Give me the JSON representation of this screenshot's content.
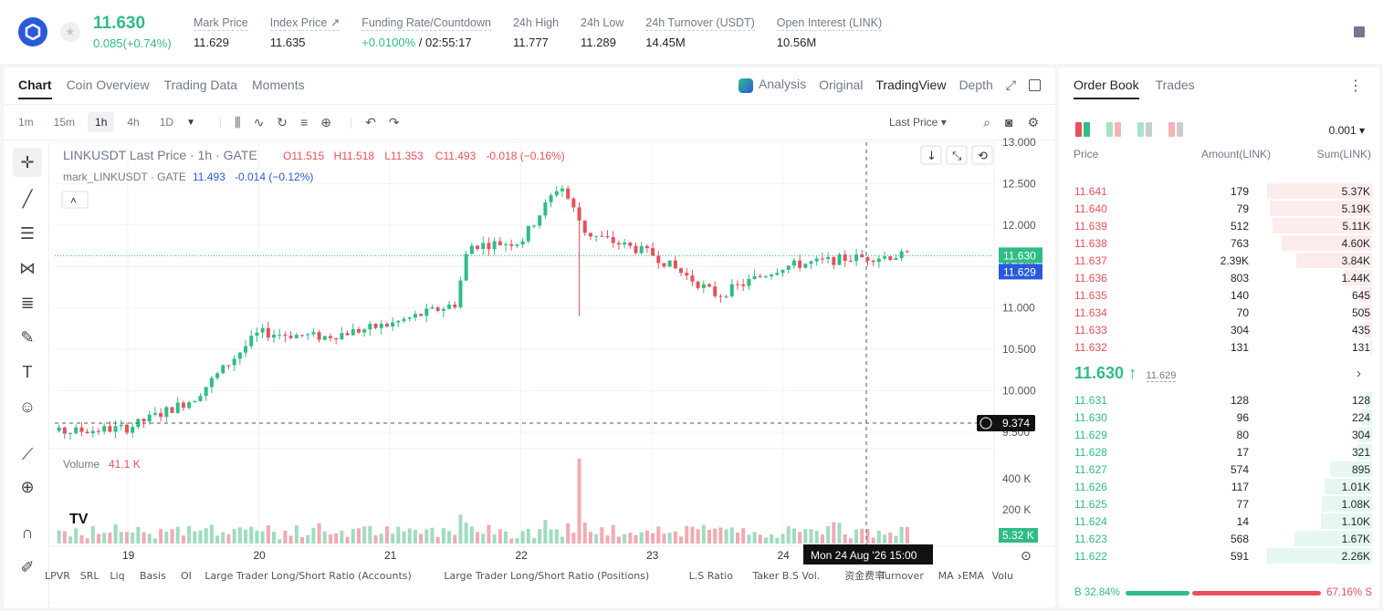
{
  "ticker": {
    "last_price": "11.630",
    "change": "0.085(+0.74%)",
    "stats": [
      {
        "label": "Mark Price",
        "value": "11.629"
      },
      {
        "label": "Index Price ↗",
        "value": "11.635"
      },
      {
        "label": "Funding Rate/Countdown",
        "value_green": "+0.0100%",
        "value": " / 02:55:17"
      },
      {
        "label": "24h High",
        "value": "11.777"
      },
      {
        "label": "24h Low",
        "value": "11.289"
      },
      {
        "label": "24h Turnover (USDT)",
        "value": "14.45M"
      },
      {
        "label": "Open Interest (LINK)",
        "value": "10.56M"
      }
    ]
  },
  "chart_tabs": [
    "Chart",
    "Coin Overview",
    "Trading Data",
    "Moments"
  ],
  "view_tabs": {
    "analysis": "Analysis",
    "original": "Original",
    "tradingview": "TradingView",
    "depth": "Depth"
  },
  "timeframes": [
    "1m",
    "15m",
    "1h",
    "4h",
    "1D"
  ],
  "active_timeframe": "1h",
  "price_type": "Last Price",
  "legend": {
    "title": "LINKUSDT Last Price · 1h · GATE",
    "o": "O11.515",
    "h": "H11.518",
    "l": "L11.353",
    "c": "C11.493",
    "chg": "-0.018 (−0.16%)",
    "mark_label": "mark_LINKUSDT · GATE",
    "mark_val": "11.493",
    "mark_chg": "-0.014 (−0.12%)"
  },
  "volume": {
    "label": "Volume",
    "value": "41.1 K"
  },
  "crosshair": {
    "price": "9.374",
    "time": "Mon 24 Aug '26   15:00"
  },
  "current_price_tag": "11.630",
  "mark_price_tag": "11.629",
  "volume_tag": "5.32 K",
  "bottom_indicators": [
    "LPVR",
    "SRL",
    "Liq",
    "Basis",
    "OI",
    "Large Trader Long/Short Ratio (Accounts)",
    "Large Trader Long/Short Ratio (Positions)",
    "L.S Ratio",
    "Taker B.S Vol.",
    "资金费率",
    "Turnover",
    "MA",
    "EMA",
    "Volu"
  ],
  "chart_data": {
    "type": "candlestick",
    "title": "LINKUSDT Last Price · 1h · GATE",
    "x_ticks": [
      "19",
      "20",
      "21",
      "22",
      "23",
      "24"
    ],
    "y_ticks": [
      "13.000",
      "12.500",
      "12.000",
      "11.500",
      "11.000",
      "10.500",
      "10.000",
      "9.500"
    ],
    "ylim": [
      9.3,
      13.0
    ],
    "volume_ticks": [
      "400 K",
      "200 K"
    ],
    "key_points": [
      {
        "x": "18",
        "close": 9.45
      },
      {
        "x": "19",
        "close": 9.55
      },
      {
        "x": "19.5",
        "close": 9.9
      },
      {
        "x": "20",
        "close": 10.7
      },
      {
        "x": "20.5",
        "close": 10.65
      },
      {
        "x": "21",
        "close": 10.8
      },
      {
        "x": "21.5",
        "close": 11.05
      },
      {
        "x": "21.6",
        "close": 11.75
      },
      {
        "x": "22",
        "close": 11.8
      },
      {
        "x": "22.3",
        "close": 12.5
      },
      {
        "x": "22.5",
        "close": 11.9
      },
      {
        "x": "23",
        "close": 11.65
      },
      {
        "x": "23.5",
        "close": 11.15
      },
      {
        "x": "24",
        "close": 11.5
      },
      {
        "x": "24.5",
        "close": 11.6
      },
      {
        "x": "24.9",
        "close": 11.63
      }
    ]
  },
  "order_book": {
    "tabs": [
      "Order Book",
      "Trades"
    ],
    "precision": "0.001",
    "headers": {
      "price": "Price",
      "amount": "Amount(LINK)",
      "sum": "Sum(LINK)"
    },
    "asks": [
      {
        "price": "11.641",
        "amount": "179",
        "sum": "5.37K",
        "depth": 1.0
      },
      {
        "price": "11.640",
        "amount": "79",
        "sum": "5.19K",
        "depth": 0.97
      },
      {
        "price": "11.639",
        "amount": "512",
        "sum": "5.11K",
        "depth": 0.95
      },
      {
        "price": "11.638",
        "amount": "763",
        "sum": "4.60K",
        "depth": 0.86
      },
      {
        "price": "11.637",
        "amount": "2.39K",
        "sum": "3.84K",
        "depth": 0.72
      },
      {
        "price": "11.636",
        "amount": "803",
        "sum": "1.44K",
        "depth": 0.27
      },
      {
        "price": "11.635",
        "amount": "140",
        "sum": "645",
        "depth": 0.12
      },
      {
        "price": "11.634",
        "amount": "70",
        "sum": "505",
        "depth": 0.09
      },
      {
        "price": "11.633",
        "amount": "304",
        "sum": "435",
        "depth": 0.08
      },
      {
        "price": "11.632",
        "amount": "131",
        "sum": "131",
        "depth": 0.02
      }
    ],
    "mid_price": "11.630 ↑",
    "mid_mark": "11.629",
    "bids": [
      {
        "price": "11.631",
        "amount": "128",
        "sum": "128",
        "depth": 0.06
      },
      {
        "price": "11.630",
        "amount": "96",
        "sum": "224",
        "depth": 0.1
      },
      {
        "price": "11.629",
        "amount": "80",
        "sum": "304",
        "depth": 0.13
      },
      {
        "price": "11.628",
        "amount": "17",
        "sum": "321",
        "depth": 0.14
      },
      {
        "price": "11.627",
        "amount": "574",
        "sum": "895",
        "depth": 0.4
      },
      {
        "price": "11.626",
        "amount": "117",
        "sum": "1.01K",
        "depth": 0.45
      },
      {
        "price": "11.625",
        "amount": "77",
        "sum": "1.08K",
        "depth": 0.48
      },
      {
        "price": "11.624",
        "amount": "14",
        "sum": "1.10K",
        "depth": 0.49
      },
      {
        "price": "11.623",
        "amount": "568",
        "sum": "1.67K",
        "depth": 0.74
      },
      {
        "price": "11.622",
        "amount": "591",
        "sum": "2.26K",
        "depth": 1.0
      }
    ],
    "buy_ratio": "B 32.84%",
    "sell_ratio": "67.16% S",
    "buy_fraction": 0.3284
  },
  "colors": {
    "up": "#2ebd85",
    "down": "#e8505b",
    "ask_bg": "#fdecec",
    "bid_bg": "#e6f7ef"
  }
}
